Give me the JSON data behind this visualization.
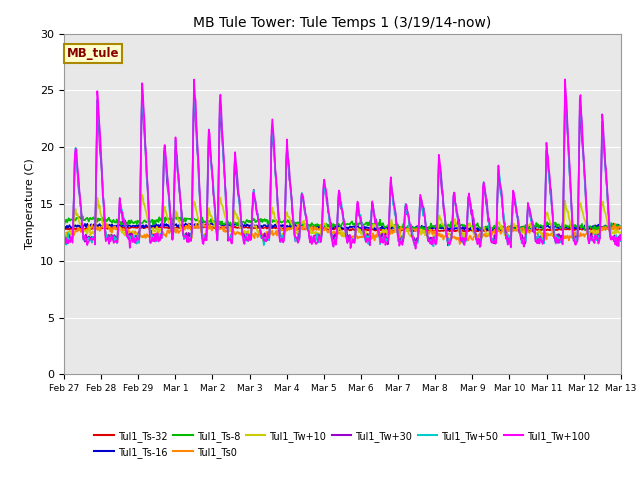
{
  "title": "MB Tule Tower: Tule Temps 1 (3/19/14-now)",
  "ylabel": "Temperature (C)",
  "ylim": [
    0,
    30
  ],
  "yticks": [
    0,
    5,
    10,
    15,
    20,
    25,
    30
  ],
  "bg_color": "#e8e8e8",
  "fig_color": "#ffffff",
  "legend_box_label": "MB_tule",
  "legend_box_bg": "#ffffcc",
  "legend_box_edge": "#aa8800",
  "legend_box_text": "#880000",
  "series_order": [
    "Tul1_Ts-32",
    "Tul1_Ts-16",
    "Tul1_Ts-8",
    "Tul1_Ts0",
    "Tul1_Tw+10",
    "Tul1_Tw+30",
    "Tul1_Tw+50",
    "Tul1_Tw+100"
  ],
  "series": {
    "Tul1_Ts-32": {
      "color": "#dd0000",
      "lw": 1.2
    },
    "Tul1_Ts-16": {
      "color": "#0000cc",
      "lw": 1.2
    },
    "Tul1_Ts-8": {
      "color": "#00bb00",
      "lw": 1.2
    },
    "Tul1_Ts0": {
      "color": "#ff8800",
      "lw": 1.2
    },
    "Tul1_Tw+10": {
      "color": "#cccc00",
      "lw": 1.2
    },
    "Tul1_Tw+30": {
      "color": "#9900cc",
      "lw": 1.2
    },
    "Tul1_Tw+50": {
      "color": "#00cccc",
      "lw": 1.2
    },
    "Tul1_Tw+100": {
      "color": "#ff00ff",
      "lw": 1.2
    }
  },
  "xtick_labels": [
    "Feb 27",
    "Feb 28",
    "Feb 29",
    "Mar 1",
    "Mar 2",
    "Mar 3",
    "Mar 4",
    "Mar 5",
    "Mar 6",
    "Mar 7",
    "Mar 8",
    "Mar 9",
    "Mar 10",
    "Mar 11",
    "Mar 12",
    "Mar 13"
  ],
  "n_days": 15,
  "pts_per_day": 48
}
